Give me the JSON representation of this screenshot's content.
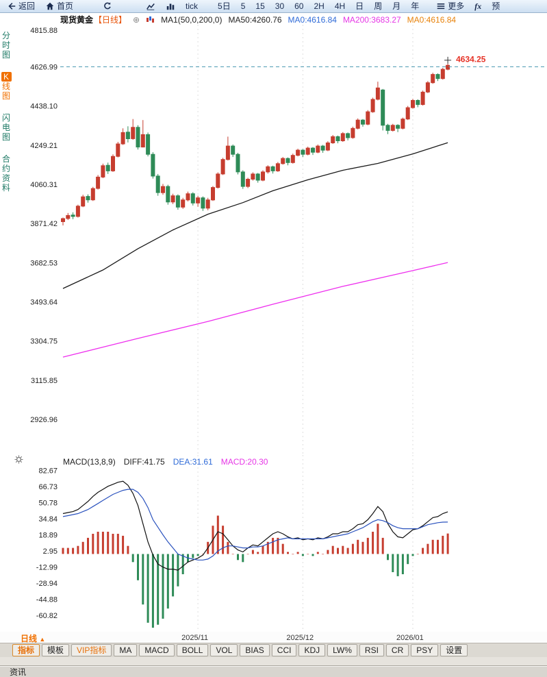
{
  "toolbar": {
    "back_label": "返回",
    "home_label": "首页",
    "tick_label": "tick",
    "five_day_label": "5日",
    "periods": [
      "5",
      "15",
      "30",
      "60",
      "2H",
      "4H",
      "日",
      "周",
      "月",
      "年"
    ],
    "more_label": "更多",
    "fx_label": "fx",
    "alert_label": "预"
  },
  "sidebar": {
    "items": [
      {
        "label": "分时图",
        "active": false
      },
      {
        "label": "K线图",
        "active": true
      },
      {
        "label": "闪电图",
        "active": false
      },
      {
        "label": "合约资料",
        "active": false
      }
    ]
  },
  "chart_header": {
    "symbol": "现货黄金",
    "period_tag": "【日线】",
    "add_icon": "⊕",
    "ma_settings": "MA1(50,0,200,0)",
    "ma50_label": "MA50:4260.76",
    "ma0_blue_label": "MA0:4616.84",
    "ma200_label": "MA200:3683.27",
    "ma0_orange_label": "MA0:4616.84"
  },
  "macd_header": {
    "title": "MACD(13,8,9)",
    "diff_label": "DIFF:41.75",
    "dea_label": "DEA:31.61",
    "macd_label": "MACD:20.30"
  },
  "bottom": {
    "period_label": "日线",
    "period_arrow": "▲",
    "active_tab": "指标",
    "vip_tab": "VIP指标",
    "tabs": [
      "指标",
      "模板",
      "VIP指标",
      "MA",
      "MACD",
      "BOLL",
      "VOL",
      "BIAS",
      "CCI",
      "KDJ",
      "LW%",
      "RSI",
      "CR",
      "PSY",
      "设置"
    ],
    "status_label": "资讯"
  },
  "chart_data": [
    {
      "type": "candlestick",
      "title": "现货黄金 日线",
      "xlabel": "",
      "ylabel": "",
      "y_ticks": [
        "4815.88",
        "4626.99",
        "4438.10",
        "4249.21",
        "4060.31",
        "3871.42",
        "3682.53",
        "3493.64",
        "3304.75",
        "3115.85",
        "2926.96"
      ],
      "axis_top": 4830,
      "axis_bottom": 2755,
      "x_labels": [
        {
          "index": 27,
          "label": "2025/11"
        },
        {
          "index": 48,
          "label": "2025/12"
        },
        {
          "index": 70,
          "label": "2026/01"
        }
      ],
      "last_price": "4634.25",
      "price_line_value": 4626.99,
      "colors": {
        "up": "#c63d2f",
        "down": "#2e8b57",
        "ma50": "#1a1a1a",
        "ma200": "#ee2fee",
        "price_line": "#4d9bb3",
        "price_label": "#e63226"
      },
      "ma50_points": [
        [
          0,
          3558
        ],
        [
          8,
          3647
        ],
        [
          15,
          3750
        ],
        [
          22,
          3840
        ],
        [
          29,
          3916
        ],
        [
          36,
          3972
        ],
        [
          42,
          4029
        ],
        [
          49,
          4082
        ],
        [
          56,
          4128
        ],
        [
          63,
          4161
        ],
        [
          70,
          4207
        ],
        [
          77,
          4261
        ]
      ],
      "ma200_points": [
        [
          0,
          3227
        ],
        [
          15,
          3317
        ],
        [
          29,
          3399
        ],
        [
          42,
          3482
        ],
        [
          56,
          3568
        ],
        [
          70,
          3644
        ],
        [
          77,
          3683
        ]
      ],
      "candles_ohlc": [
        [
          3880,
          3900,
          3862,
          3895
        ],
        [
          3895,
          3922,
          3888,
          3910
        ],
        [
          3912,
          3925,
          3892,
          3905
        ],
        [
          3905,
          3962,
          3900,
          3955
        ],
        [
          3955,
          4010,
          3950,
          4000
        ],
        [
          4002,
          4012,
          3972,
          3985
        ],
        [
          3985,
          4048,
          3980,
          4040
        ],
        [
          4040,
          4105,
          4035,
          4095
        ],
        [
          4095,
          4160,
          4090,
          4150
        ],
        [
          4152,
          4165,
          4110,
          4125
        ],
        [
          4125,
          4205,
          4120,
          4195
        ],
        [
          4195,
          4265,
          4190,
          4255
        ],
        [
          4255,
          4330,
          4250,
          4310
        ],
        [
          4312,
          4340,
          4262,
          4280
        ],
        [
          4280,
          4375,
          4275,
          4335
        ],
        [
          4335,
          4345,
          4228,
          4240
        ],
        [
          4240,
          4370,
          4238,
          4300
        ],
        [
          4300,
          4310,
          4195,
          4205
        ],
        [
          4205,
          4215,
          4088,
          4100
        ],
        [
          4100,
          4110,
          4005,
          4020
        ],
        [
          4020,
          4062,
          4010,
          4050
        ],
        [
          4050,
          4058,
          3962,
          3975
        ],
        [
          3975,
          4015,
          3965,
          4005
        ],
        [
          4005,
          4012,
          3938,
          3950
        ],
        [
          3950,
          3995,
          3942,
          3985
        ],
        [
          3985,
          4025,
          3978,
          4015
        ],
        [
          4015,
          4022,
          3958,
          3970
        ],
        [
          3970,
          4005,
          3952,
          3995
        ],
        [
          3995,
          4002,
          3932,
          3945
        ],
        [
          3945,
          3995,
          3935,
          3985
        ],
        [
          3985,
          4052,
          3980,
          4045
        ],
        [
          4045,
          4118,
          4040,
          4110
        ],
        [
          4110,
          4188,
          4105,
          4180
        ],
        [
          4180,
          4290,
          4175,
          4245
        ],
        [
          4245,
          4252,
          4192,
          4205
        ],
        [
          4205,
          4212,
          4108,
          4120
        ],
        [
          4120,
          4128,
          4038,
          4050
        ],
        [
          4050,
          4092,
          4042,
          4085
        ],
        [
          4085,
          4118,
          4078,
          4110
        ],
        [
          4110,
          4115,
          4068,
          4080
        ],
        [
          4080,
          4128,
          4075,
          4120
        ],
        [
          4120,
          4152,
          4112,
          4145
        ],
        [
          4145,
          4150,
          4112,
          4125
        ],
        [
          4125,
          4168,
          4120,
          4160
        ],
        [
          4160,
          4192,
          4155,
          4185
        ],
        [
          4185,
          4190,
          4152,
          4165
        ],
        [
          4165,
          4208,
          4160,
          4200
        ],
        [
          4200,
          4232,
          4195,
          4225
        ],
        [
          4225,
          4230,
          4192,
          4205
        ],
        [
          4205,
          4242,
          4200,
          4235
        ],
        [
          4235,
          4240,
          4202,
          4215
        ],
        [
          4215,
          4252,
          4210,
          4245
        ],
        [
          4245,
          4250,
          4212,
          4225
        ],
        [
          4225,
          4268,
          4220,
          4260
        ],
        [
          4260,
          4298,
          4255,
          4290
        ],
        [
          4290,
          4295,
          4258,
          4270
        ],
        [
          4270,
          4312,
          4265,
          4305
        ],
        [
          4305,
          4310,
          4272,
          4285
        ],
        [
          4285,
          4338,
          4280,
          4330
        ],
        [
          4330,
          4378,
          4325,
          4370
        ],
        [
          4370,
          4375,
          4338,
          4350
        ],
        [
          4350,
          4418,
          4345,
          4410
        ],
        [
          4410,
          4478,
          4405,
          4470
        ],
        [
          4470,
          4555,
          4465,
          4525
        ],
        [
          4515,
          4520,
          4320,
          4345
        ],
        [
          4345,
          4352,
          4302,
          4320
        ],
        [
          4320,
          4352,
          4315,
          4345
        ],
        [
          4345,
          4350,
          4312,
          4330
        ],
        [
          4330,
          4382,
          4325,
          4375
        ],
        [
          4375,
          4438,
          4370,
          4430
        ],
        [
          4430,
          4472,
          4425,
          4465
        ],
        [
          4465,
          4470,
          4432,
          4445
        ],
        [
          4445,
          4512,
          4440,
          4505
        ],
        [
          4505,
          4558,
          4500,
          4550
        ],
        [
          4550,
          4598,
          4545,
          4590
        ],
        [
          4590,
          4595,
          4558,
          4570
        ],
        [
          4570,
          4622,
          4565,
          4615
        ],
        [
          4615,
          4642,
          4610,
          4634
        ]
      ]
    },
    {
      "type": "bar",
      "title": "MACD(13,8,9)",
      "y_ticks": [
        "82.67",
        "66.73",
        "50.78",
        "34.84",
        "18.89",
        "2.95",
        "-12.99",
        "-28.94",
        "-44.88",
        "-60.82"
      ],
      "axis_top": 98,
      "axis_bottom": -77,
      "series": [
        {
          "name": "DIFF",
          "type": "line",
          "color": "#111111",
          "values": [
            40,
            41,
            42,
            44,
            48,
            52,
            57,
            61,
            64,
            67,
            69,
            71,
            72,
            68,
            60,
            48,
            30,
            12,
            -1,
            -10,
            -13,
            -15,
            -15,
            -16,
            -12,
            -8,
            -6,
            -4,
            -1,
            6,
            14,
            22,
            20,
            14,
            8,
            4,
            2,
            6,
            9,
            8,
            12,
            16,
            20,
            22,
            20,
            17,
            15,
            16,
            14,
            15,
            14,
            16,
            15,
            17,
            20,
            20,
            22,
            22,
            25,
            29,
            30,
            34,
            40,
            47,
            42,
            30,
            22,
            17,
            16,
            20,
            24,
            25,
            28,
            32,
            36,
            37,
            40,
            41.75
          ]
        },
        {
          "name": "DEA",
          "type": "line",
          "color": "#2a52be",
          "values": [
            37,
            38,
            39,
            40,
            42,
            44,
            47,
            50,
            53,
            56,
            59,
            61,
            63,
            64,
            64,
            61,
            55,
            46,
            34,
            26.5,
            19,
            12,
            6,
            0,
            -2,
            -4,
            -5,
            -6,
            -6,
            -5,
            -2,
            3,
            6,
            8,
            8,
            7,
            6,
            6,
            7,
            7,
            8,
            10,
            12,
            14,
            15,
            16,
            15,
            15,
            15,
            15,
            15,
            15,
            15,
            16,
            17,
            18,
            19,
            20,
            22,
            24,
            26,
            29,
            32,
            34,
            33,
            31,
            28,
            26,
            25,
            25,
            25,
            25,
            27,
            29,
            30,
            31,
            31.5,
            31.61
          ]
        },
        {
          "name": "MACD",
          "type": "bar",
          "up_color": "#c63d2f",
          "down_color": "#2e8b57",
          "values": [
            6,
            6,
            6,
            8,
            12,
            16,
            20,
            22,
            22,
            22,
            20,
            20,
            18,
            8,
            -8,
            -26,
            -50,
            -68,
            -73,
            -70,
            -64,
            -54,
            -42,
            -32,
            -20,
            -8,
            -4,
            -2,
            0,
            12,
            28,
            38,
            28,
            12,
            0,
            -6,
            -8,
            0,
            4,
            2,
            8,
            12,
            16,
            16,
            10,
            2,
            0,
            2,
            -2,
            0,
            -2,
            2,
            0,
            4,
            8,
            6,
            8,
            6,
            10,
            14,
            12,
            16,
            22,
            30,
            16,
            -6,
            -18,
            -22,
            -20,
            -10,
            -2,
            0,
            6,
            10,
            14,
            14,
            18,
            20.3
          ]
        }
      ]
    }
  ]
}
